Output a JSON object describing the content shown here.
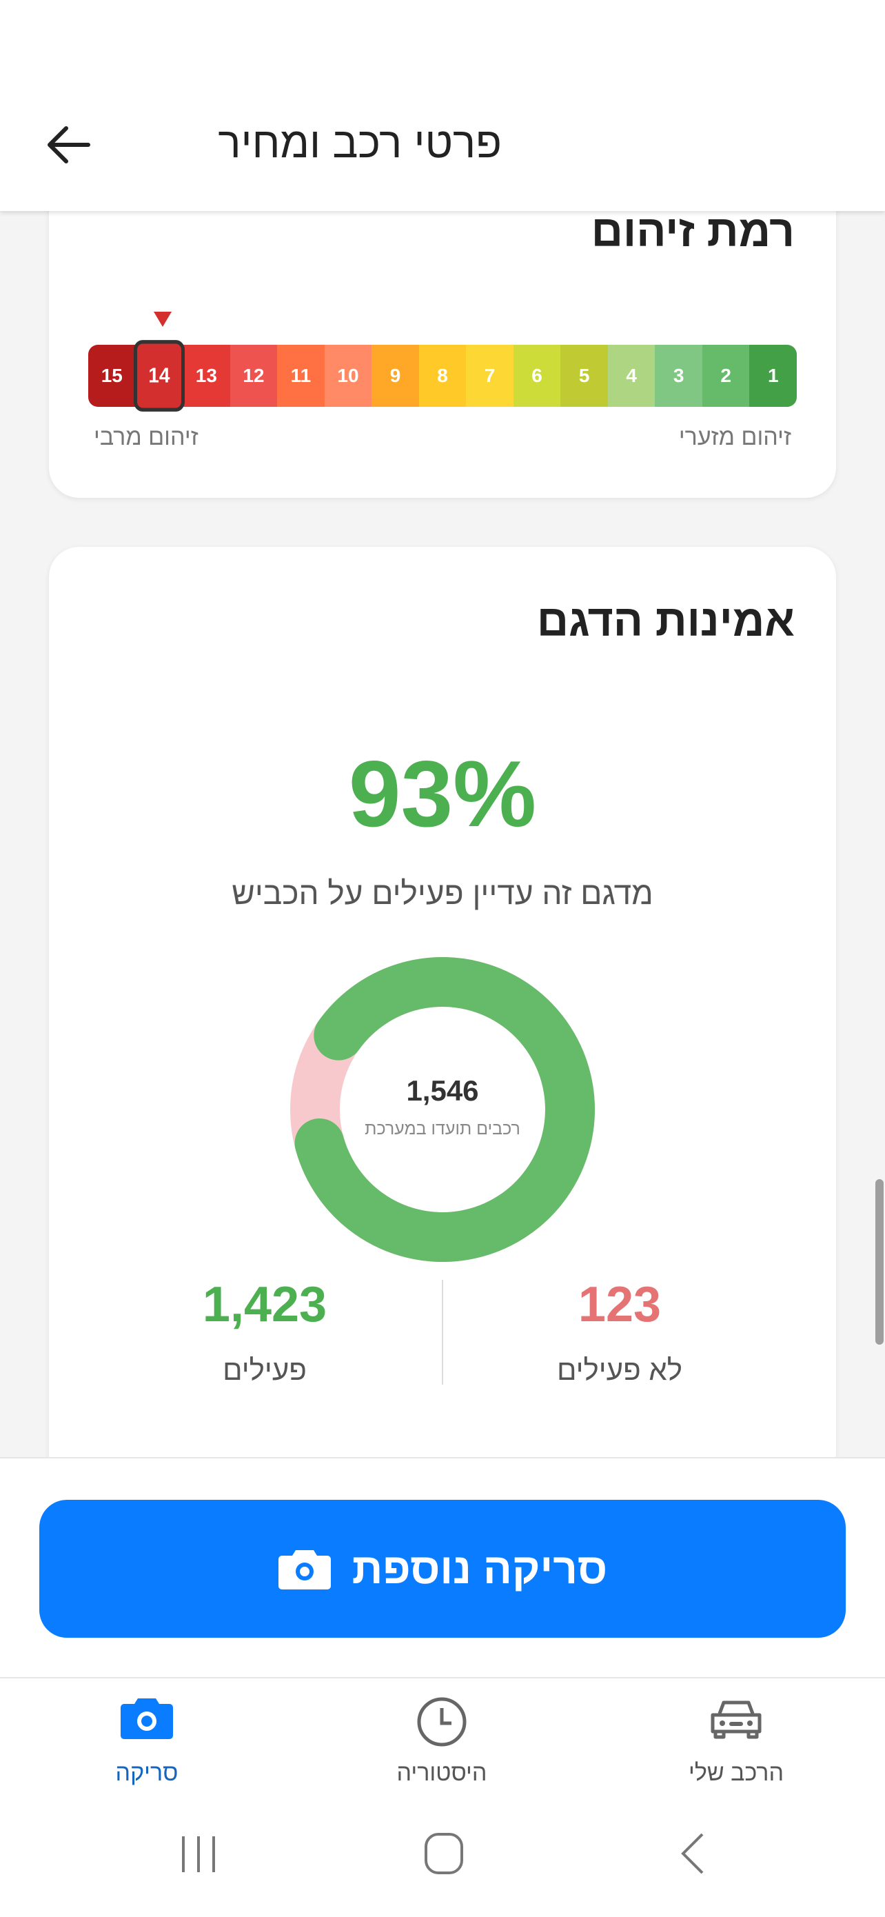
{
  "header": {
    "title": "פרטי רכב ומחיר",
    "back_icon": "arrow-left-icon"
  },
  "pollution": {
    "title": "רמת זיהום",
    "levels": [
      "1",
      "2",
      "3",
      "4",
      "5",
      "6",
      "7",
      "8",
      "9",
      "10",
      "11",
      "12",
      "13",
      "14",
      "15"
    ],
    "colors": [
      "#43a047",
      "#66bb6a",
      "#81c784",
      "#aed581",
      "#c0ca33",
      "#cddc39",
      "#fdd835",
      "#ffca28",
      "#ffa726",
      "#ff8a65",
      "#ff7043",
      "#ef5350",
      "#e53935",
      "#d32f2f",
      "#b71c1c"
    ],
    "selected": 14,
    "min_label": "זיהום מזערי",
    "max_label": "זיהום מרבי"
  },
  "reliability": {
    "title": "אמינות הדגם",
    "percent": "93%",
    "subtitle": "מדגם זה עדיין פעילים על הכביש",
    "total": "1,546",
    "total_label": "רכבים תועדו במערכת",
    "active": "1,423",
    "active_label": "פעילים",
    "inactive": "123",
    "inactive_label": "לא פעילים",
    "active_color": "#66bb6a",
    "inactive_color": "#f8c9cc"
  },
  "cta": {
    "label": "סריקה נוספת",
    "icon": "camera-icon",
    "color": "#0a7cff"
  },
  "nav": {
    "items": [
      {
        "label": "סריקה",
        "icon": "camera-icon",
        "active": true
      },
      {
        "label": "היסטוריה",
        "icon": "clock-icon",
        "active": false
      },
      {
        "label": "הרכב שלי",
        "icon": "car-icon",
        "active": false
      }
    ]
  }
}
